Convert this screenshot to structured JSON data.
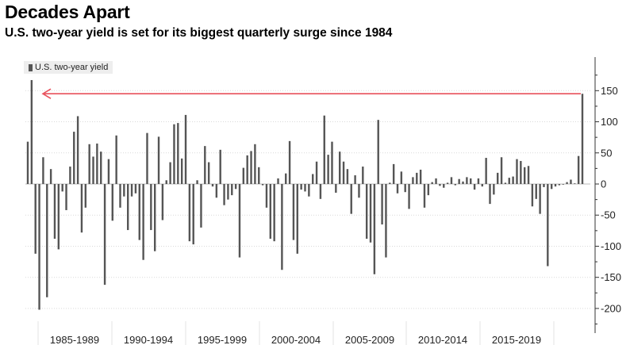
{
  "title": "Decades Apart",
  "subtitle": "U.S. two-year yield is set for its biggest quarterly surge since 1984",
  "legend": {
    "label": "U.S. two-year yield"
  },
  "colors": {
    "bar": "#555555",
    "arrow": "#e8505b",
    "grid": "#d9d9d9",
    "axis": "#333333"
  },
  "chart_data": {
    "type": "bar",
    "title": "Decades Apart",
    "subtitle": "U.S. two-year yield is set for its biggest quarterly surge since 1984",
    "ylabel": "",
    "ylim": [
      -240,
      200
    ],
    "yticks": [
      150,
      100,
      50,
      0,
      -50,
      -100,
      -150,
      -200
    ],
    "period_labels": [
      "1985-1989",
      "1990-1994",
      "1995-1999",
      "2000-2004",
      "2005-2009",
      "2010-2014",
      "2015-2019"
    ],
    "series": [
      {
        "name": "U.S. two-year yield",
        "values": [
          68,
          167,
          -112,
          -202,
          43,
          -182,
          24,
          -88,
          -105,
          -12,
          -42,
          28,
          84,
          109,
          -78,
          -38,
          64,
          44,
          65,
          52,
          -162,
          40,
          -59,
          78,
          -38,
          -20,
          -74,
          -20,
          -15,
          -90,
          -122,
          82,
          -74,
          -108,
          76,
          -58,
          6,
          35,
          96,
          98,
          41,
          111,
          -92,
          -97,
          6,
          -70,
          61,
          35,
          -4,
          -22,
          55,
          -34,
          -25,
          -18,
          -8,
          -118,
          26,
          46,
          53,
          64,
          27,
          -2,
          -38,
          -88,
          -92,
          9,
          -138,
          17,
          69,
          -90,
          -112,
          -9,
          -12,
          -20,
          16,
          36,
          -24,
          110,
          47,
          68,
          -14,
          52,
          36,
          24,
          -48,
          14,
          -22,
          28,
          -88,
          -94,
          -145,
          103,
          -65,
          -118,
          2,
          32,
          -15,
          20,
          -13,
          -40,
          11,
          18,
          23,
          -38,
          -18,
          3,
          9,
          -3,
          -6,
          2,
          11,
          -2,
          8,
          4,
          11,
          9,
          -9,
          9,
          -4,
          42,
          -32,
          -17,
          18,
          43,
          2,
          10,
          12,
          40,
          37,
          27,
          29,
          -36,
          -24,
          -48,
          -5,
          -132,
          -8,
          -4,
          -2,
          -1,
          3,
          7,
          1,
          45,
          145
        ]
      }
    ],
    "annotations": [
      "Arrow from the latest quarter (~145) back to the 1984 surge (~167)"
    ]
  }
}
